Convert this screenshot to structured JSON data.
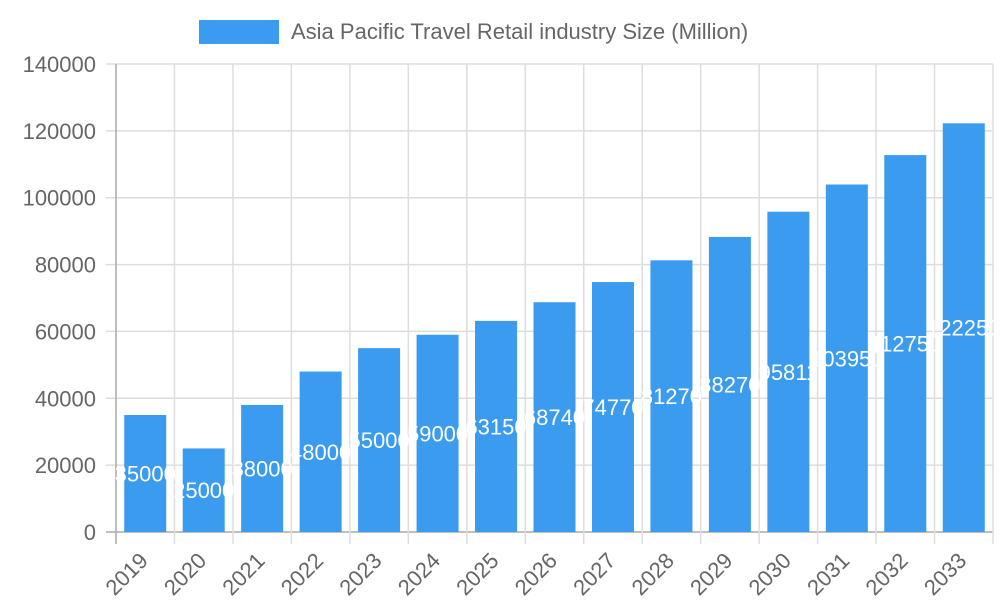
{
  "chart_data": {
    "type": "bar",
    "title": "",
    "legend": [
      "Asia Pacific Travel Retail industry Size (Million)"
    ],
    "legend_position": "top",
    "xlabel": "",
    "ylabel": "",
    "ylim": [
      0,
      140000
    ],
    "yticks": [
      0,
      20000,
      40000,
      60000,
      80000,
      100000,
      120000,
      140000
    ],
    "grid": true,
    "categories": [
      "2019",
      "2020",
      "2021",
      "2022",
      "2023",
      "2024",
      "2025",
      "2026",
      "2027",
      "2028",
      "2029",
      "2030",
      "2031",
      "2032",
      "2033"
    ],
    "series": [
      {
        "name": "Asia Pacific Travel Retail industry Size (Million)",
        "color": "#3a9bef",
        "values": [
          35000,
          25000,
          38000,
          48000,
          55000,
          59000,
          63150,
          68740,
          74770,
          81270,
          88270,
          95811,
          103950,
          112750,
          122250
        ]
      }
    ]
  },
  "legend": {
    "label": "Asia Pacific Travel Retail industry Size (Million)",
    "color": "#3a9bef"
  }
}
